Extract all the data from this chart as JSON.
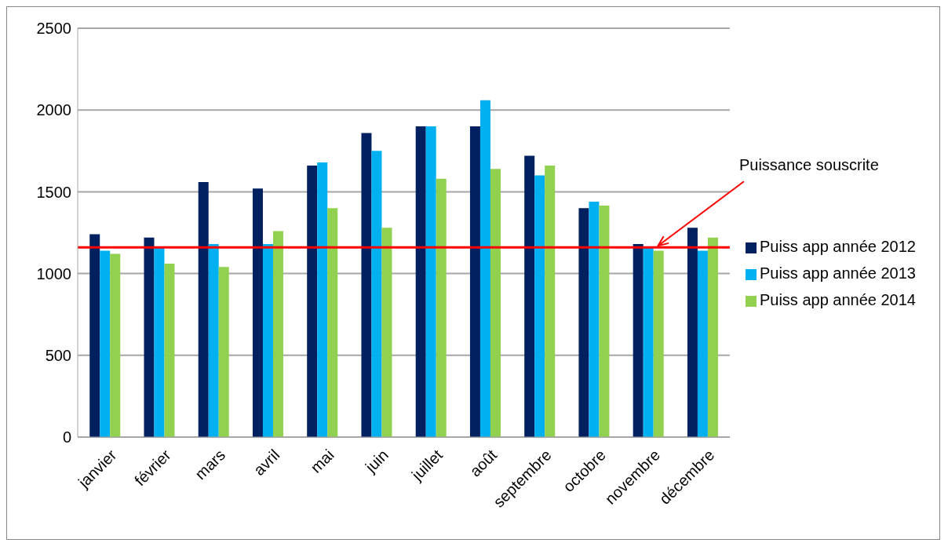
{
  "chart_data": {
    "type": "bar",
    "categories": [
      "janvier",
      "février",
      "mars",
      "avril",
      "mai",
      "juin",
      "juillet",
      "août",
      "septembre",
      "octobre",
      "novembre",
      "décembre"
    ],
    "series": [
      {
        "name": "Puiss app année 2012",
        "color": "#002060",
        "values": [
          1240,
          1220,
          1560,
          1520,
          1660,
          1860,
          1900,
          1900,
          1720,
          1400,
          1180,
          1280
        ]
      },
      {
        "name": "Puiss app année 2013",
        "color": "#00b0f0",
        "values": [
          1140,
          1160,
          1180,
          1180,
          1680,
          1750,
          1900,
          2060,
          1600,
          1440,
          1160,
          1140
        ]
      },
      {
        "name": "Puiss app année 2014",
        "color": "#92d050",
        "values": [
          1120,
          1060,
          1040,
          1260,
          1400,
          1280,
          1580,
          1640,
          1660,
          1415,
          1140,
          1220
        ]
      }
    ],
    "ylim": [
      0,
      2500
    ],
    "yticks": [
      0,
      500,
      1000,
      1500,
      2000,
      2500
    ],
    "grid": "y",
    "legend": "right",
    "ref_lines": [
      {
        "axis": "y",
        "value": 1160,
        "label": "Puissance souscrite",
        "color": "#ff0000"
      }
    ]
  }
}
